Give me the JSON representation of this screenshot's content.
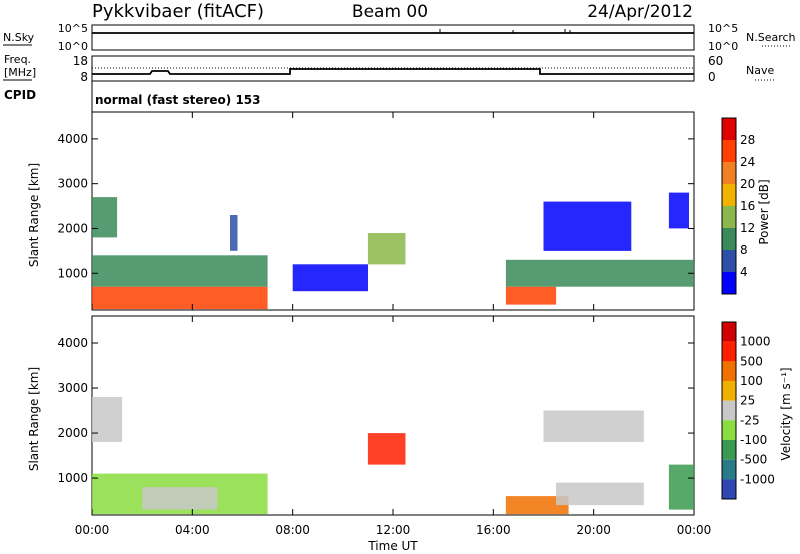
{
  "header": {
    "station": "Pykkvibaer (fitACF)",
    "beam": "Beam 00",
    "date": "24/Apr/2012"
  },
  "summary_panels": {
    "nsky_label": "N.Sky",
    "nsky_ticks": [
      "10^5",
      "10^0"
    ],
    "nsearch_label": "N.Search",
    "nsearch_ticks": [
      "10^5",
      "10^0"
    ],
    "freq_label_line1": "Freq.",
    "freq_label_line2": "[MHz]",
    "freq_ticks": [
      "18",
      "8"
    ],
    "nave_label": "Nave",
    "nave_ticks": [
      "60",
      "0"
    ],
    "cpid_label": "CPID",
    "cpid_value": "normal (fast stereo) 153"
  },
  "chart_data": [
    {
      "type": "heatmap",
      "name": "power",
      "ylabel": "Slant Range [km]",
      "ylim": [
        180,
        4600
      ],
      "yticks": [
        "1000",
        "2000",
        "3000",
        "4000"
      ],
      "xlim": [
        0,
        24
      ],
      "colorbar_label": "Power [dB]",
      "colorbar_ticks": [
        "4",
        "8",
        "12",
        "16",
        "20",
        "24",
        "28"
      ],
      "colorbar_colors": [
        "#0000ff",
        "#2d4fa8",
        "#3a8a5a",
        "#8ab84a",
        "#f0b400",
        "#f08020",
        "#ff4000",
        "#e00000"
      ],
      "regions": [
        {
          "t0": 0.0,
          "t1": 7.0,
          "r0": 200,
          "r1": 700,
          "level": 6
        },
        {
          "t0": 0.0,
          "t1": 7.0,
          "r0": 700,
          "r1": 1400,
          "level": 2
        },
        {
          "t0": 0.0,
          "t1": 1.0,
          "r0": 1800,
          "r1": 2700,
          "level": 2
        },
        {
          "t0": 5.5,
          "t1": 5.8,
          "r0": 1500,
          "r1": 2300,
          "level": 1
        },
        {
          "t0": 8.0,
          "t1": 11.0,
          "r0": 600,
          "r1": 1200,
          "level": 0
        },
        {
          "t0": 11.0,
          "t1": 12.5,
          "r0": 1200,
          "r1": 1900,
          "level": 3
        },
        {
          "t0": 16.5,
          "t1": 18.5,
          "r0": 300,
          "r1": 700,
          "level": 6
        },
        {
          "t0": 16.5,
          "t1": 24.0,
          "r0": 700,
          "r1": 1300,
          "level": 2
        },
        {
          "t0": 18.0,
          "t1": 21.5,
          "r0": 1500,
          "r1": 2600,
          "level": 0
        },
        {
          "t0": 23.0,
          "t1": 23.8,
          "r0": 2000,
          "r1": 2800,
          "level": 0
        }
      ]
    },
    {
      "type": "heatmap",
      "name": "velocity",
      "ylabel": "Slant Range [km]",
      "ylim": [
        180,
        4600
      ],
      "yticks": [
        "1000",
        "2000",
        "3000",
        "4000"
      ],
      "xlim": [
        0,
        24
      ],
      "xticks": [
        "00:00",
        "04:00",
        "08:00",
        "12:00",
        "16:00",
        "20:00",
        "00:00"
      ],
      "xlabel": "Time UT",
      "colorbar_label": "Velocity [m s⁻¹]",
      "colorbar_ticks": [
        "1000",
        "500",
        "100",
        "25",
        "-25",
        "-100",
        "-500",
        "-1000"
      ],
      "colorbar_colors": [
        "#2f47b0",
        "#2a7a88",
        "#3a9a50",
        "#8adc40",
        "#c8c8c8",
        "#f0b000",
        "#f07000",
        "#ff2000",
        "#d00000"
      ],
      "regions": [
        {
          "t0": 0.0,
          "t1": 7.0,
          "r0": 200,
          "r1": 1100,
          "level": 3
        },
        {
          "t0": 0.0,
          "t1": 1.2,
          "r0": 1800,
          "r1": 2800,
          "level": 4
        },
        {
          "t0": 2.0,
          "t1": 5.0,
          "r0": 300,
          "r1": 800,
          "level": 4
        },
        {
          "t0": 11.0,
          "t1": 12.5,
          "r0": 1300,
          "r1": 2000,
          "level": 7
        },
        {
          "t0": 16.5,
          "t1": 19.0,
          "r0": 200,
          "r1": 600,
          "level": 6
        },
        {
          "t0": 18.5,
          "t1": 22.0,
          "r0": 400,
          "r1": 900,
          "level": 4
        },
        {
          "t0": 18.0,
          "t1": 22.0,
          "r0": 1800,
          "r1": 2500,
          "level": 4
        },
        {
          "t0": 23.0,
          "t1": 24.0,
          "r0": 300,
          "r1": 1300,
          "level": 2
        }
      ]
    }
  ]
}
